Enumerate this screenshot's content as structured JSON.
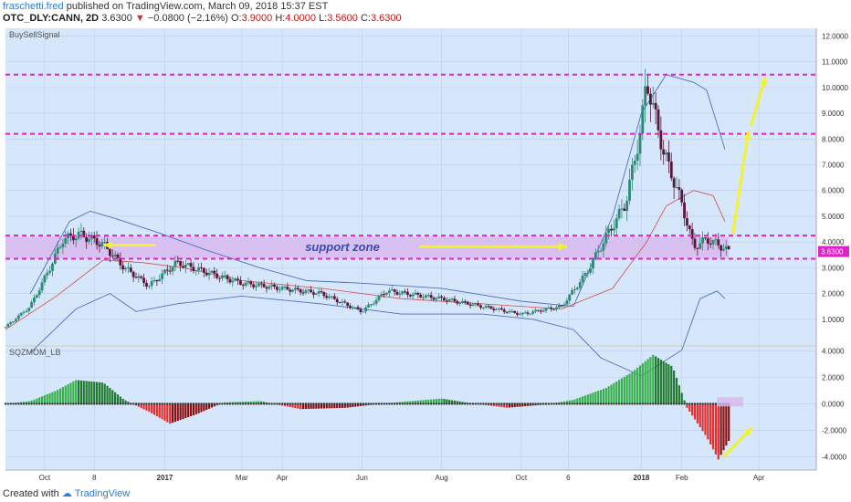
{
  "header": {
    "author": "fraschetti.fred",
    "published": "published on TradingView.com, March 09, 2018 15:37 EST",
    "symbol": "OTC_DLY:CANN, 2D",
    "last": "3.6300",
    "change_arrow": "▼",
    "change": "−0.0800 (−2.16%)",
    "o_label": "O:",
    "o_val": "3.9000",
    "h_label": "H:",
    "h_val": "4.0000",
    "l_label": "L:",
    "l_val": "3.5600",
    "c_label": "C:",
    "c_val": "3.6300"
  },
  "footer": {
    "created_with": "Created with",
    "brand": "TradingView"
  },
  "colors": {
    "panel_bg": "#d6e7fb",
    "grid": "#bcd0e8",
    "up": "#2a8a72",
    "down": "#5a1638",
    "bb": "#4c6fc4",
    "basis": "#d24a4a",
    "magenta": "#e020c8",
    "yellow": "#f2f230",
    "zone": "#d8b8ee",
    "green_hist": "#36b04a",
    "red_hist": "#e03030"
  },
  "chart_data": [
    {
      "type": "candlestick",
      "title": "BuySellSignal",
      "y_axis_side": "right",
      "ylim": [
        0.0,
        12.3
      ],
      "y_ticks": [
        "12.0000",
        "11.0000",
        "10.0000",
        "9.0000",
        "8.0000",
        "7.0000",
        "6.0000",
        "5.0000",
        "4.0000",
        "3.0000",
        "2.0000",
        "1.0000"
      ],
      "x_ticks": [
        "Oct",
        "8",
        "2017",
        "Mar",
        "Apr",
        "Jun",
        "Aug",
        "Oct",
        "6",
        "2018",
        "Feb",
        "Apr"
      ],
      "x_range": [
        "2016-09-01",
        "2018-05-15"
      ],
      "last_price_label": "3.6300",
      "price_path": [
        [
          "2016-09-01",
          0.7
        ],
        [
          "2016-09-20",
          1.5
        ],
        [
          "2016-10-05",
          3.0
        ],
        [
          "2016-10-15",
          4.1
        ],
        [
          "2016-10-28",
          4.3
        ],
        [
          "2016-11-15",
          3.9
        ],
        [
          "2016-12-01",
          3.0
        ],
        [
          "2016-12-20",
          2.3
        ],
        [
          "2017-01-10",
          3.2
        ],
        [
          "2017-02-10",
          2.7
        ],
        [
          "2017-03-01",
          2.4
        ],
        [
          "2017-04-01",
          2.2
        ],
        [
          "2017-05-01",
          2.0
        ],
        [
          "2017-06-01",
          1.3
        ],
        [
          "2017-06-20",
          2.1
        ],
        [
          "2017-08-01",
          1.8
        ],
        [
          "2017-09-01",
          1.5
        ],
        [
          "2017-10-01",
          1.2
        ],
        [
          "2017-11-01",
          1.5
        ],
        [
          "2017-11-20",
          2.8
        ],
        [
          "2017-12-05",
          4.2
        ],
        [
          "2017-12-20",
          5.5
        ],
        [
          "2018-01-01",
          8.5
        ],
        [
          "2018-01-05",
          10.3
        ],
        [
          "2018-01-18",
          7.5
        ],
        [
          "2018-02-01",
          5.5
        ],
        [
          "2018-02-10",
          3.8
        ],
        [
          "2018-02-20",
          4.1
        ],
        [
          "2018-03-01",
          3.9
        ],
        [
          "2018-03-09",
          3.63
        ]
      ],
      "bollinger_upper": [
        [
          "2016-09-20",
          2.0
        ],
        [
          "2016-10-20",
          4.8
        ],
        [
          "2016-11-05",
          5.2
        ],
        [
          "2016-11-25",
          4.9
        ],
        [
          "2016-12-25",
          4.4
        ],
        [
          "2017-02-01",
          3.7
        ],
        [
          "2017-03-15",
          3.0
        ],
        [
          "2017-04-20",
          2.5
        ],
        [
          "2017-06-01",
          2.4
        ],
        [
          "2017-08-01",
          2.2
        ],
        [
          "2017-10-01",
          1.7
        ],
        [
          "2017-11-10",
          1.5
        ],
        [
          "2017-12-10",
          5.0
        ],
        [
          "2018-01-01",
          9.0
        ],
        [
          "2018-01-20",
          10.5
        ],
        [
          "2018-02-10",
          10.2
        ],
        [
          "2018-02-20",
          9.9
        ],
        [
          "2018-03-06",
          7.6
        ]
      ],
      "bollinger_basis": [
        [
          "2016-09-01",
          0.6
        ],
        [
          "2016-10-10",
          1.9
        ],
        [
          "2016-11-15",
          3.3
        ],
        [
          "2016-12-15",
          3.2
        ],
        [
          "2017-01-15",
          3.0
        ],
        [
          "2017-03-01",
          2.5
        ],
        [
          "2017-05-01",
          2.2
        ],
        [
          "2017-07-01",
          1.8
        ],
        [
          "2017-09-01",
          1.6
        ],
        [
          "2017-11-01",
          1.4
        ],
        [
          "2017-12-10",
          2.2
        ],
        [
          "2018-01-05",
          4.0
        ],
        [
          "2018-01-20",
          5.4
        ],
        [
          "2018-02-10",
          6.0
        ],
        [
          "2018-02-25",
          5.8
        ],
        [
          "2018-03-06",
          4.8
        ]
      ],
      "bollinger_lower": [
        [
          "2016-09-20",
          -0.3
        ],
        [
          "2016-10-25",
          1.4
        ],
        [
          "2016-11-20",
          2.0
        ],
        [
          "2016-12-10",
          1.3
        ],
        [
          "2017-01-10",
          1.6
        ],
        [
          "2017-03-01",
          1.9
        ],
        [
          "2017-05-01",
          1.6
        ],
        [
          "2017-07-01",
          1.2
        ],
        [
          "2017-09-01",
          1.2
        ],
        [
          "2017-10-10",
          1.0
        ],
        [
          "2017-11-10",
          0.6
        ],
        [
          "2017-12-01",
          -0.5
        ],
        [
          "2018-01-01",
          -1.2
        ],
        [
          "2018-02-01",
          -0.2
        ],
        [
          "2018-02-15",
          1.8
        ],
        [
          "2018-02-28",
          2.1
        ],
        [
          "2018-03-06",
          1.8
        ]
      ],
      "horizontal_lines": [
        10.5,
        8.2,
        4.25,
        3.35
      ],
      "support_zone": {
        "low": 3.35,
        "high": 4.2,
        "from": "2016-09-01",
        "to": "2018-03-09",
        "label": "support zone"
      },
      "arrows": [
        {
          "from": [
            "2016-12-25",
            3.88
          ],
          "to": [
            "2016-11-15",
            3.88
          ]
        },
        {
          "from": [
            "2017-07-15",
            3.82
          ],
          "to": [
            "2017-11-05",
            3.82
          ]
        },
        {
          "from": [
            "2018-03-12",
            4.3
          ],
          "to": [
            "2018-03-24",
            8.3
          ]
        },
        {
          "from": [
            "2018-03-26",
            8.5
          ],
          "to": [
            "2018-04-06",
            10.4
          ]
        }
      ]
    },
    {
      "type": "bar",
      "title": "SQZMOM_LB",
      "y_axis_side": "right",
      "ylim": [
        -5.0,
        4.3
      ],
      "y_ticks": [
        "4.0000",
        "2.0000",
        "0.0000",
        "-2.0000",
        "-4.0000"
      ],
      "momentum_path": [
        [
          "2016-09-01",
          0.0
        ],
        [
          "2016-09-20",
          0.2
        ],
        [
          "2016-10-10",
          1.0
        ],
        [
          "2016-10-25",
          1.8
        ],
        [
          "2016-11-15",
          1.6
        ],
        [
          "2016-12-01",
          0.3
        ],
        [
          "2016-12-20",
          -0.6
        ],
        [
          "2017-01-05",
          -1.5
        ],
        [
          "2017-01-25",
          -0.8
        ],
        [
          "2017-02-15",
          0.1
        ],
        [
          "2017-03-15",
          0.2
        ],
        [
          "2017-04-15",
          -0.4
        ],
        [
          "2017-05-20",
          -0.3
        ],
        [
          "2017-06-15",
          0.0
        ],
        [
          "2017-08-01",
          0.4
        ],
        [
          "2017-08-20",
          0.1
        ],
        [
          "2017-09-20",
          -0.3
        ],
        [
          "2017-10-20",
          -0.05
        ],
        [
          "2017-11-10",
          0.3
        ],
        [
          "2017-12-05",
          1.2
        ],
        [
          "2017-12-25",
          2.4
        ],
        [
          "2018-01-10",
          3.7
        ],
        [
          "2018-01-25",
          2.8
        ],
        [
          "2018-02-05",
          -0.3
        ],
        [
          "2018-02-20",
          -2.5
        ],
        [
          "2018-03-01",
          -4.2
        ],
        [
          "2018-03-09",
          -2.8
        ]
      ],
      "zero_label": "0.0000",
      "arrows": [
        {
          "from": [
            "2018-03-05",
            -4.0
          ],
          "to": [
            "2018-03-27",
            -1.8
          ]
        }
      ],
      "highlight_box": {
        "from": "2018-02-28",
        "to": "2018-03-20",
        "low": -0.2,
        "high": 0.5
      }
    }
  ]
}
